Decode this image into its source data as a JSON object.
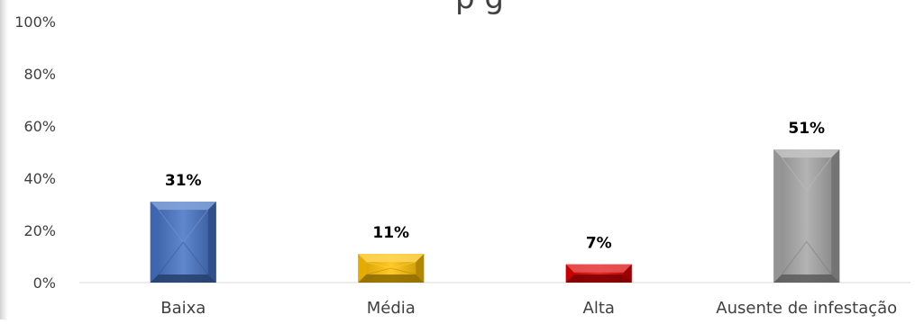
{
  "chart_data": {
    "type": "bar",
    "title_fragment": "p      g",
    "categories": [
      "Baixa",
      "Média",
      "Alta",
      "Ausente de infestação"
    ],
    "values": [
      31,
      11,
      7,
      51
    ],
    "data_labels": [
      "31%",
      "11%",
      "7%",
      "51%"
    ],
    "colors": [
      "#4472c4",
      "#ffc000",
      "#e00000",
      "#a6a6a6"
    ],
    "ylim": [
      0,
      100
    ],
    "yticks": [
      0,
      20,
      40,
      60,
      80,
      100
    ],
    "ytick_labels": [
      "0%",
      "20%",
      "40%",
      "60%",
      "80%",
      "100%"
    ],
    "grid": false,
    "legend": "none",
    "bar_style": "beveled"
  }
}
